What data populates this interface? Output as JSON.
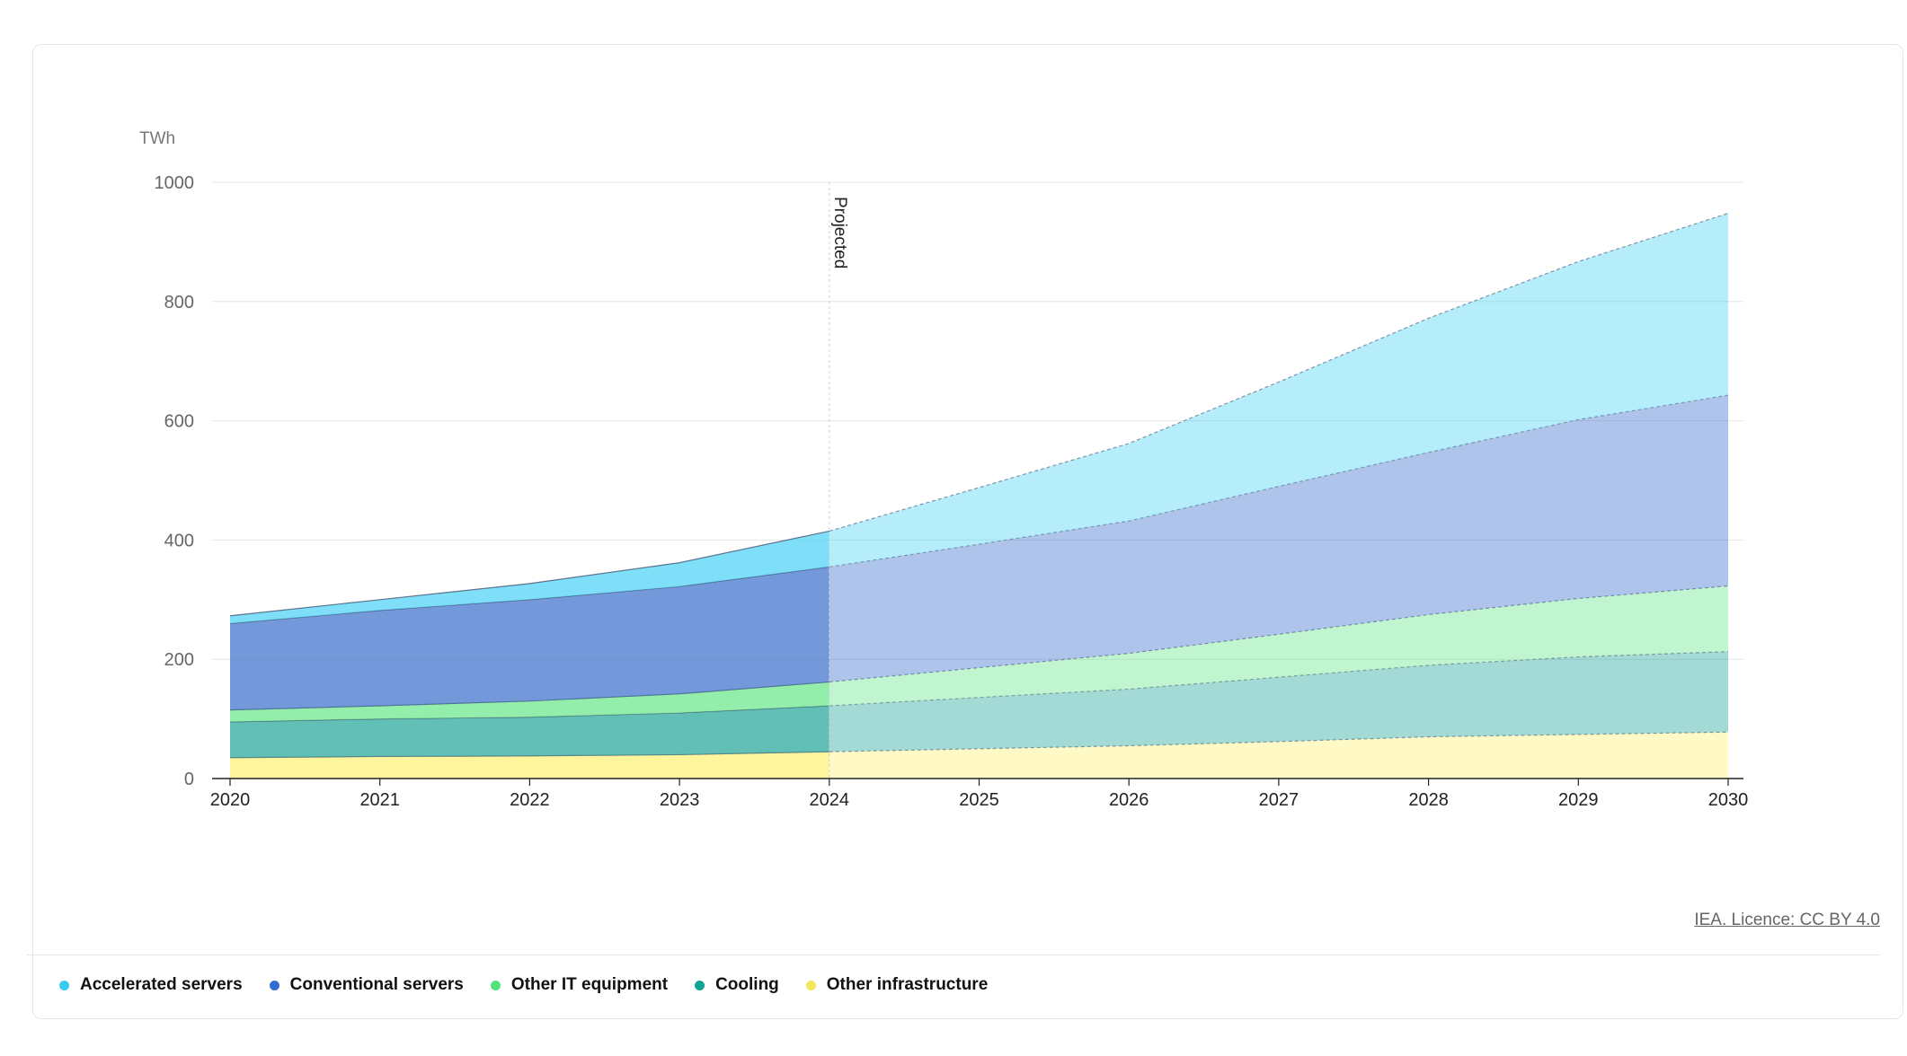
{
  "licence_text": "IEA. Licence: CC BY 4.0",
  "chart_data": {
    "type": "area",
    "stacked": true,
    "unit_label": "TWh",
    "x": [
      2020,
      2021,
      2022,
      2023,
      2024,
      2025,
      2026,
      2027,
      2028,
      2029,
      2030
    ],
    "y_ticks": [
      0,
      200,
      400,
      600,
      800,
      1000
    ],
    "ylim": [
      0,
      1000
    ],
    "grid": true,
    "projection_start": 2024,
    "projection_label": "Projected",
    "legend_position": "bottom-left",
    "series": [
      {
        "name": "Other infrastructure",
        "color": "#fff176",
        "values": [
          35,
          37,
          38,
          40,
          45,
          50,
          55,
          62,
          70,
          74,
          78
        ]
      },
      {
        "name": "Cooling",
        "color": "#26a69a",
        "values": [
          60,
          63,
          65,
          70,
          77,
          86,
          95,
          108,
          120,
          130,
          135
        ]
      },
      {
        "name": "Other IT equipment",
        "color": "#69e88c",
        "values": [
          20,
          22,
          27,
          32,
          40,
          50,
          60,
          72,
          85,
          98,
          110
        ]
      },
      {
        "name": "Conventional servers",
        "color": "#3f72cc",
        "values": [
          145,
          160,
          170,
          180,
          193,
          207,
          222,
          248,
          272,
          300,
          320
        ]
      },
      {
        "name": "Accelerated servers",
        "color": "#4fd3f5",
        "values": [
          13,
          18,
          27,
          40,
          60,
          95,
          130,
          175,
          225,
          265,
          305
        ]
      }
    ]
  },
  "legend": [
    {
      "label": "Accelerated servers",
      "color": "#4fd3f5"
    },
    {
      "label": "Conventional servers",
      "color": "#3f72cc"
    },
    {
      "label": "Other IT equipment",
      "color": "#69e88c"
    },
    {
      "label": "Cooling",
      "color": "#26a69a"
    },
    {
      "label": "Other infrastructure",
      "color": "#fff176"
    }
  ]
}
